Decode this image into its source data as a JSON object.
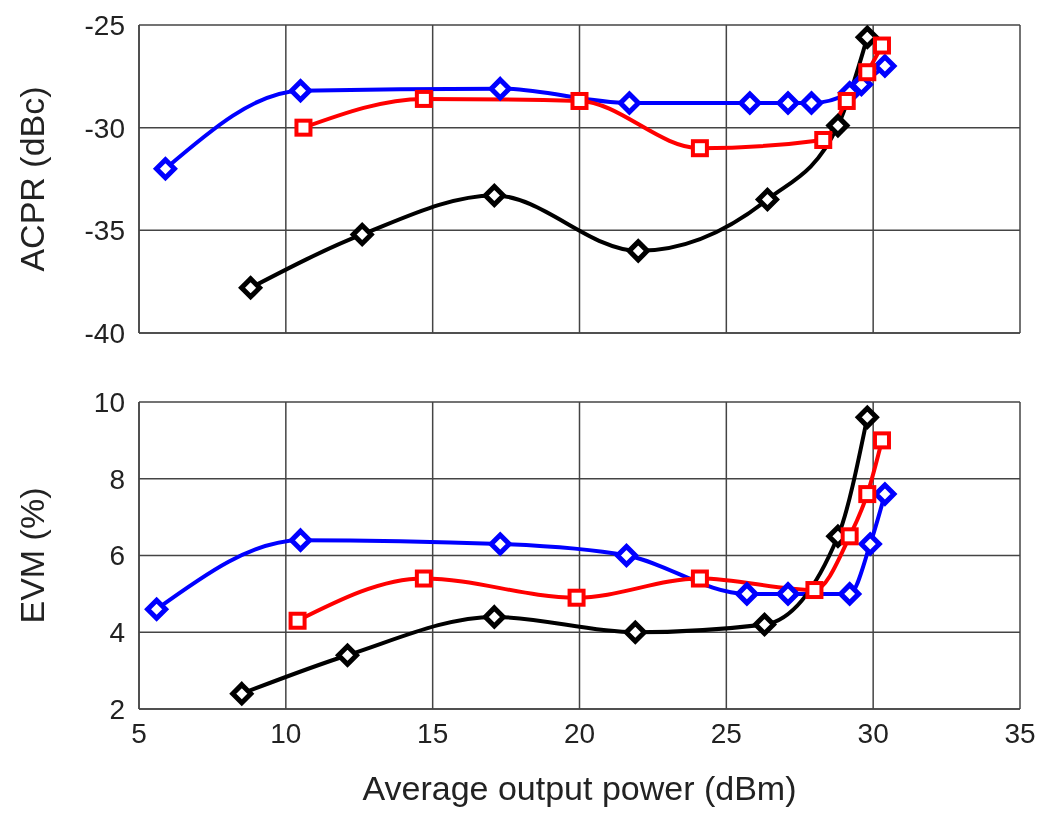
{
  "chart_data": [
    {
      "type": "line",
      "ylabel": "ACPR (dBc)",
      "xlim": [
        5,
        35
      ],
      "xticks": [
        5,
        10,
        15,
        20,
        25,
        30,
        35
      ],
      "ylim": [
        -40,
        -25
      ],
      "yticks": [
        -40,
        -35,
        -30,
        -25
      ],
      "grid": true,
      "tick_labels": "y",
      "line_style": "solid",
      "series": [
        {
          "color": "#0000ff",
          "marker": "diamond",
          "x": [
            5.9,
            10.5,
            17.3,
            21.7,
            25.8,
            27.1,
            27.9,
            29.2,
            29.6,
            30.4
          ],
          "values": [
            -32.0,
            -28.2,
            -28.1,
            -28.8,
            -28.8,
            -28.8,
            -28.8,
            -28.3,
            -27.9,
            -27.0
          ]
        },
        {
          "color": "#000000",
          "marker": "diamond",
          "x": [
            8.8,
            12.6,
            17.1,
            22.0,
            26.4,
            28.8,
            29.8
          ],
          "values": [
            -37.8,
            -35.2,
            -33.3,
            -36.0,
            -33.5,
            -29.9,
            -25.6
          ]
        },
        {
          "color": "#ff0000",
          "marker": "square",
          "x": [
            10.6,
            14.7,
            20.0,
            24.1,
            28.3,
            29.1,
            29.8,
            30.3
          ],
          "values": [
            -30.0,
            -28.6,
            -28.7,
            -31.0,
            -30.6,
            -28.7,
            -27.3,
            -26.0
          ]
        }
      ]
    },
    {
      "type": "line",
      "xlabel": "Average output power (dBm)",
      "ylabel": "EVM (%)",
      "xlim": [
        5,
        35
      ],
      "xticks": [
        5,
        10,
        15,
        20,
        25,
        30,
        35
      ],
      "ylim": [
        2,
        10
      ],
      "yticks": [
        2,
        4,
        6,
        8,
        10
      ],
      "grid": true,
      "line_style": "solid",
      "series": [
        {
          "color": "#0000ff",
          "marker": "diamond",
          "x": [
            5.6,
            10.5,
            17.3,
            21.6,
            25.7,
            27.1,
            29.2,
            29.9,
            30.4
          ],
          "values": [
            4.6,
            6.4,
            6.3,
            6.0,
            5.0,
            5.0,
            5.0,
            6.3,
            7.6
          ]
        },
        {
          "color": "#000000",
          "marker": "diamond",
          "x": [
            8.5,
            12.1,
            17.1,
            21.9,
            26.3,
            28.8,
            29.8
          ],
          "values": [
            2.4,
            3.4,
            4.4,
            4.0,
            4.2,
            6.5,
            9.6
          ]
        },
        {
          "color": "#ff0000",
          "marker": "square",
          "x": [
            10.4,
            14.7,
            19.9,
            24.1,
            28.0,
            29.2,
            29.8,
            30.3
          ],
          "values": [
            4.3,
            5.4,
            4.9,
            5.4,
            5.1,
            6.5,
            7.6,
            9.0
          ]
        }
      ]
    }
  ]
}
